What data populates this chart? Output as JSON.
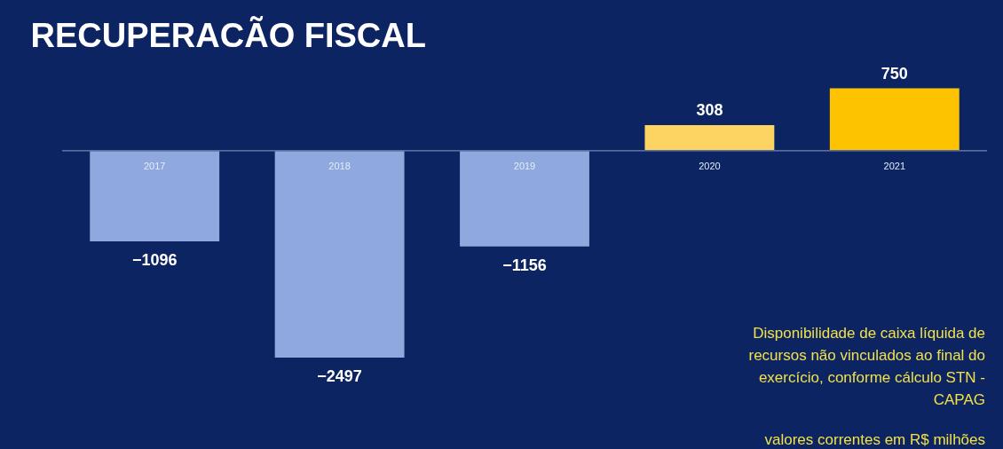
{
  "chart_data": {
    "type": "bar",
    "title": "RECUPERACÃO FISCAL",
    "categories": [
      "2017",
      "2018",
      "2019",
      "2020",
      "2021"
    ],
    "values": [
      -1096,
      -2497,
      -1156,
      308,
      750
    ],
    "colors": [
      "#8fa8dd",
      "#8fa8dd",
      "#8fa8dd",
      "#fdd462",
      "#fdc300"
    ],
    "data_labels": true,
    "annotations": [
      "Disponibilidade de caixa líquida de recursos não vinculados ao final do exercício, conforme cálculo STN - CAPAG",
      "valores correntes em R$ milhões"
    ]
  }
}
